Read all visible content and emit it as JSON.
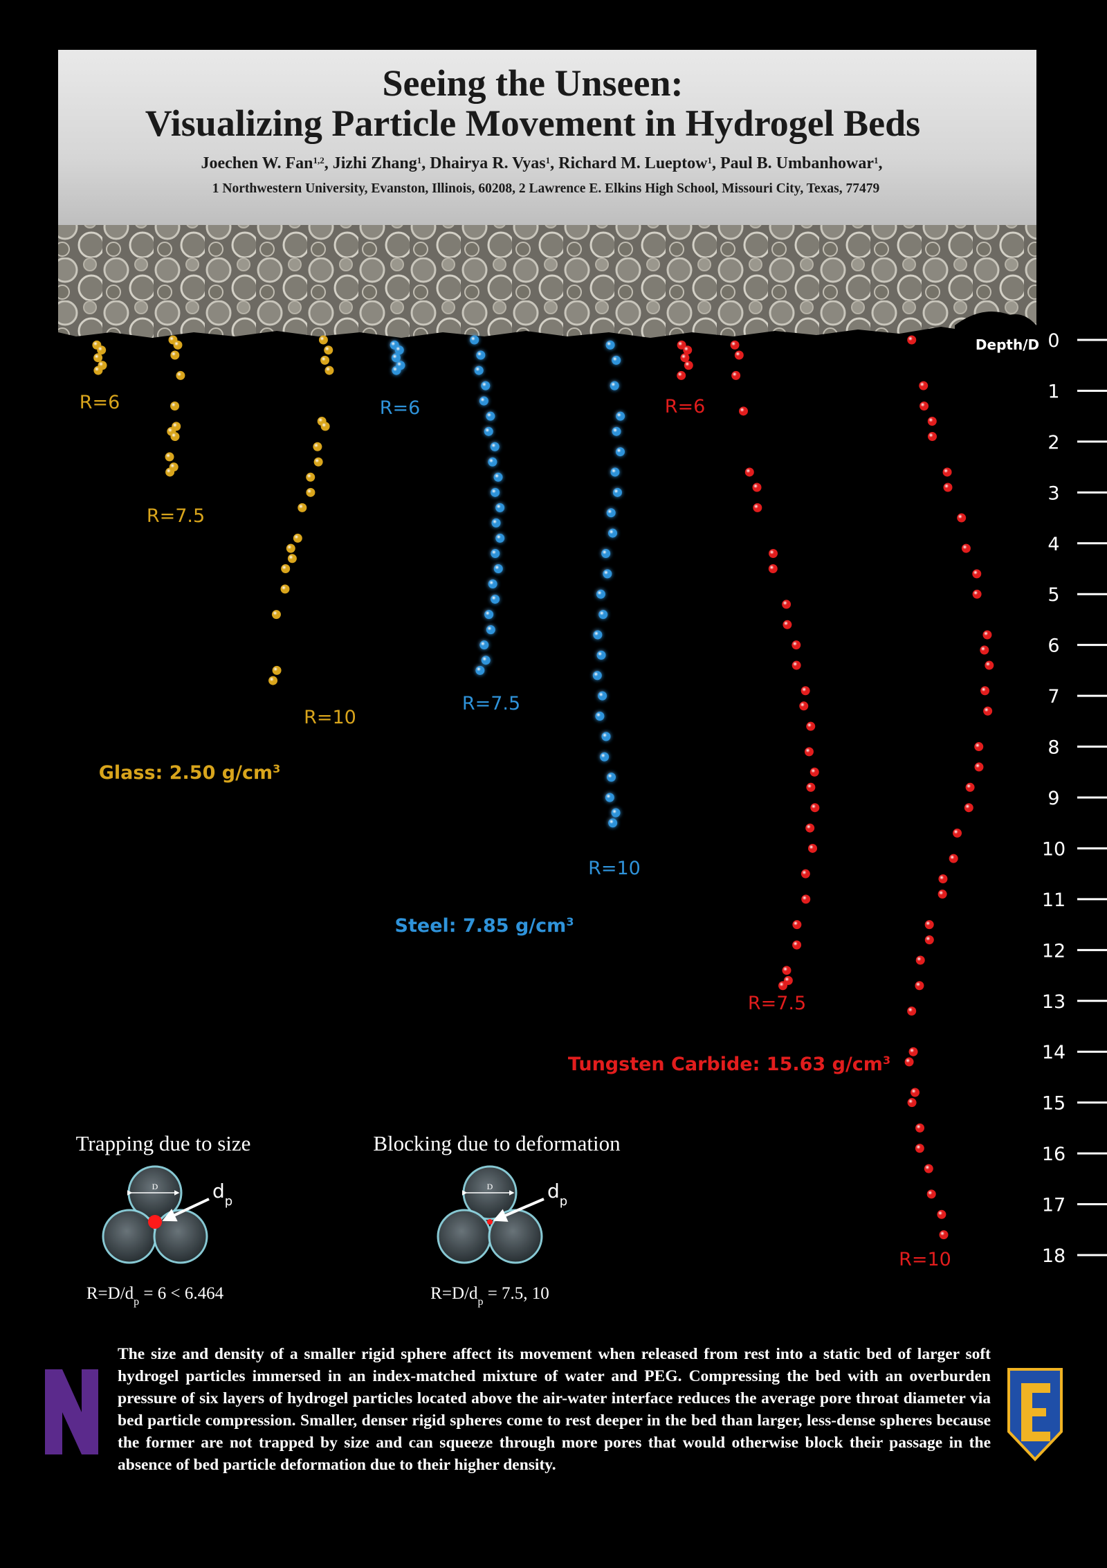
{
  "header": {
    "title_line1": "Seeing the Unseen:",
    "title_line2": "Visualizing Particle Movement in Hydrogel Beds",
    "authors": {
      "segments": [
        {
          "text": "Joechen W. Fan",
          "sup": "1,2"
        },
        {
          "text": ", Jizhi Zhang",
          "sup": "1"
        },
        {
          "text": ", Dhairya R. Vyas",
          "sup": "1"
        },
        {
          "text": ", Richard M. Lueptow",
          "sup": "1"
        },
        {
          "text": ", Paul B. Umbanhowar",
          "sup": "1"
        }
      ],
      "tail": ","
    },
    "affiliations": "1 Northwestern University, Evanston, Illinois, 60208, 2 Lawrence E. Elkins High School, Missouri City, Texas, 77479"
  },
  "depth_axis": {
    "label": "Depth/D",
    "ylim": [
      0,
      18
    ],
    "ticks": [
      0,
      1,
      2,
      3,
      4,
      5,
      6,
      7,
      8,
      9,
      10,
      11,
      12,
      13,
      14,
      15,
      16,
      17,
      18
    ]
  },
  "materials": [
    {
      "label": "Glass: 2.50 g/cm",
      "sup": "3",
      "color": "#d9a51c",
      "trajectories": [
        {
          "label": "R=6",
          "depths": [
            0.1,
            0.2,
            0.35,
            0.5,
            0.6
          ]
        },
        {
          "label": "R=7.5",
          "depths": [
            0,
            0.1,
            0.3,
            0.7,
            1.3,
            1.7,
            1.8,
            1.9,
            2.3,
            2.5,
            2.6
          ]
        },
        {
          "label": "R=10",
          "depths": [
            0,
            0.2,
            0.4,
            0.6,
            1.6,
            1.7,
            2.1,
            2.4,
            2.7,
            3.0,
            3.3,
            3.9,
            4.1,
            4.3,
            4.5,
            4.9,
            5.4,
            6.5,
            6.7
          ]
        }
      ]
    },
    {
      "label": "Steel: 7.85 g/cm",
      "sup": "3",
      "color": "#2f93da",
      "trajectories": [
        {
          "label": "R=6",
          "depths": [
            0.1,
            0.2,
            0.35,
            0.5,
            0.6
          ]
        },
        {
          "label": "R=7.5",
          "depths": [
            0,
            0.3,
            0.6,
            0.9,
            1.2,
            1.5,
            1.8,
            2.1,
            2.4,
            2.7,
            3.0,
            3.3,
            3.6,
            3.9,
            4.2,
            4.5,
            4.8,
            5.1,
            5.4,
            5.7,
            6.0,
            6.3,
            6.5
          ]
        },
        {
          "label": "R=10",
          "depths": [
            0.1,
            0.4,
            0.9,
            1.5,
            1.8,
            2.2,
            2.6,
            3.0,
            3.4,
            3.8,
            4.2,
            4.6,
            5.0,
            5.4,
            5.8,
            6.2,
            6.6,
            7.0,
            7.4,
            7.8,
            8.2,
            8.6,
            9.0,
            9.3,
            9.5
          ]
        }
      ]
    },
    {
      "label": "Tungsten Carbide: 15.63 g/cm",
      "sup": "3",
      "color": "#e21d1d",
      "trajectories": [
        {
          "label": "R=6",
          "depths": [
            0.1,
            0.2,
            0.35,
            0.5,
            0.7
          ]
        },
        {
          "label": "R=7.5",
          "depths": [
            0.1,
            0.3,
            0.7,
            1.4,
            2.6,
            2.9,
            3.3,
            4.2,
            4.5,
            5.2,
            5.6,
            6.0,
            6.4,
            6.9,
            7.2,
            7.6,
            8.1,
            8.5,
            8.8,
            9.2,
            9.6,
            10.0,
            10.5,
            11.0,
            11.5,
            11.9,
            12.4,
            12.6,
            12.7
          ]
        },
        {
          "label": "R=10",
          "depths": [
            0,
            0.9,
            1.3,
            1.6,
            1.9,
            2.6,
            2.9,
            3.5,
            4.1,
            4.6,
            5.0,
            5.8,
            6.1,
            6.4,
            6.9,
            7.3,
            8.0,
            8.4,
            8.8,
            9.2,
            9.7,
            10.2,
            10.6,
            10.9,
            11.5,
            11.8,
            12.2,
            12.7,
            13.2,
            14.0,
            14.2,
            14.8,
            15.0,
            15.5,
            15.9,
            16.3,
            16.8,
            17.2,
            17.6
          ]
        }
      ]
    }
  ],
  "mechanisms": [
    {
      "title": "Trapping due to size",
      "diameter_label": "D",
      "particle_label": "d",
      "particle_sub": "p",
      "formula": "R=D/d",
      "formula_sub": "p",
      "formula_rest": " = 6 < 6.464"
    },
    {
      "title": "Blocking due to deformation",
      "diameter_label": "D",
      "particle_label": "d",
      "particle_sub": "p",
      "formula": "R=D/d",
      "formula_sub": "p",
      "formula_rest": " = 7.5, 10"
    }
  ],
  "description": "The size and density of a smaller rigid sphere affect its movement when released from rest into a static bed of larger soft hydrogel particles immersed in an index-matched mixture of water and PEG. Compressing the bed with an overburden pressure of six layers of hydrogel particles located above the air-water interface reduces the average pore throat diameter via bed particle compression. Smaller, denser rigid spheres come to rest deeper in the bed than larger, less-dense spheres because the former are not trapped by size and can squeeze through more pores that would otherwise block their passage in the absence of bed particle deformation due to their higher density."
}
